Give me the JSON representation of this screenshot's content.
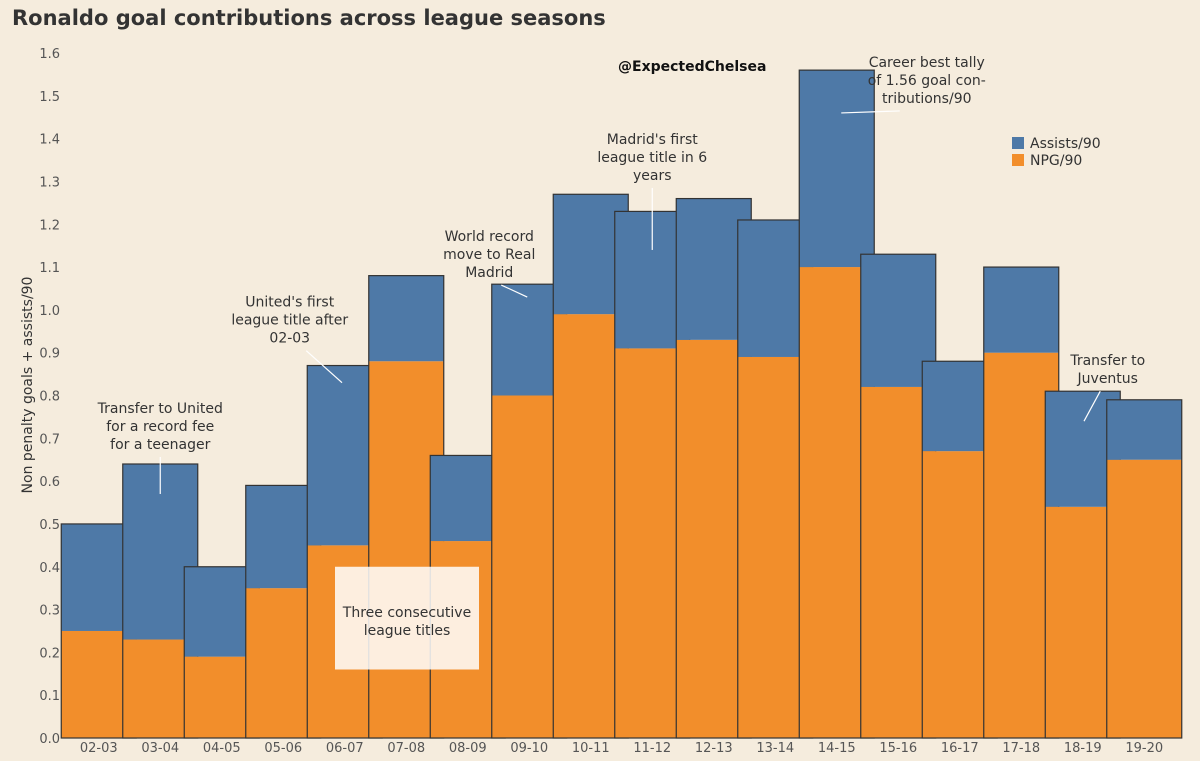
{
  "chart_data": {
    "type": "bar",
    "stacked": true,
    "title": "Ronaldo goal contributions across league seasons",
    "xlabel": "",
    "ylabel": "Non penalty goals + assists/90",
    "ylim": [
      0,
      1.6
    ],
    "yticks": [
      "0.0",
      "0.1",
      "0.2",
      "0.3",
      "0.4",
      "0.5",
      "0.6",
      "0.7",
      "0.8",
      "0.9",
      "1.0",
      "1.1",
      "1.2",
      "1.3",
      "1.4",
      "1.5",
      "1.6"
    ],
    "grid": false,
    "legend_position": "top-right",
    "categories": [
      "02-03",
      "03-04",
      "04-05",
      "05-06",
      "06-07",
      "07-08",
      "08-09",
      "09-10",
      "10-11",
      "11-12",
      "12-13",
      "13-14",
      "14-15",
      "15-16",
      "16-17",
      "17-18",
      "18-19",
      "19-20"
    ],
    "series": [
      {
        "name": "NPG/90",
        "color": "#f28e2b",
        "values": [
          0.25,
          0.23,
          0.19,
          0.35,
          0.45,
          0.88,
          0.46,
          0.8,
          0.99,
          0.91,
          0.93,
          0.89,
          1.1,
          0.82,
          0.67,
          0.9,
          0.54,
          0.65
        ]
      },
      {
        "name": "Assists/90",
        "color": "#4e79a7",
        "values": [
          0.25,
          0.41,
          0.21,
          0.24,
          0.42,
          0.2,
          0.2,
          0.26,
          0.28,
          0.32,
          0.33,
          0.32,
          0.46,
          0.31,
          0.21,
          0.2,
          0.27,
          0.14
        ]
      }
    ],
    "legend": [
      {
        "label": "Assists/90",
        "color": "#4e79a7"
      },
      {
        "label": "NPG/90",
        "color": "#f28e2b"
      }
    ],
    "watermark": "@ExpectedChelsea",
    "annotations": [
      {
        "lines": [
          "Transfer to United",
          "for a record fee",
          "for a teenager"
        ],
        "category": "03-04",
        "value": 0.57
      },
      {
        "lines": [
          "United's first",
          "league title after",
          "02-03"
        ],
        "category": "06-07",
        "value": 0.83
      },
      {
        "lines": [
          "Three consecutive",
          "league titles"
        ],
        "category": "06-07",
        "value": 0.3,
        "boxed": true
      },
      {
        "lines": [
          "World record",
          "move to Real",
          "Madrid"
        ],
        "category": "09-10",
        "value": 1.03
      },
      {
        "lines": [
          "Madrid's first",
          "league title in 6",
          "years"
        ],
        "category": "11-12",
        "value": 1.14
      },
      {
        "lines": [
          "Career best tally",
          "of 1.56 goal con-",
          "tributions/90"
        ],
        "category": "14-15",
        "value": 1.46
      },
      {
        "lines": [
          "Transfer to",
          "Juventus"
        ],
        "category": "18-19",
        "value": 0.74
      }
    ]
  }
}
